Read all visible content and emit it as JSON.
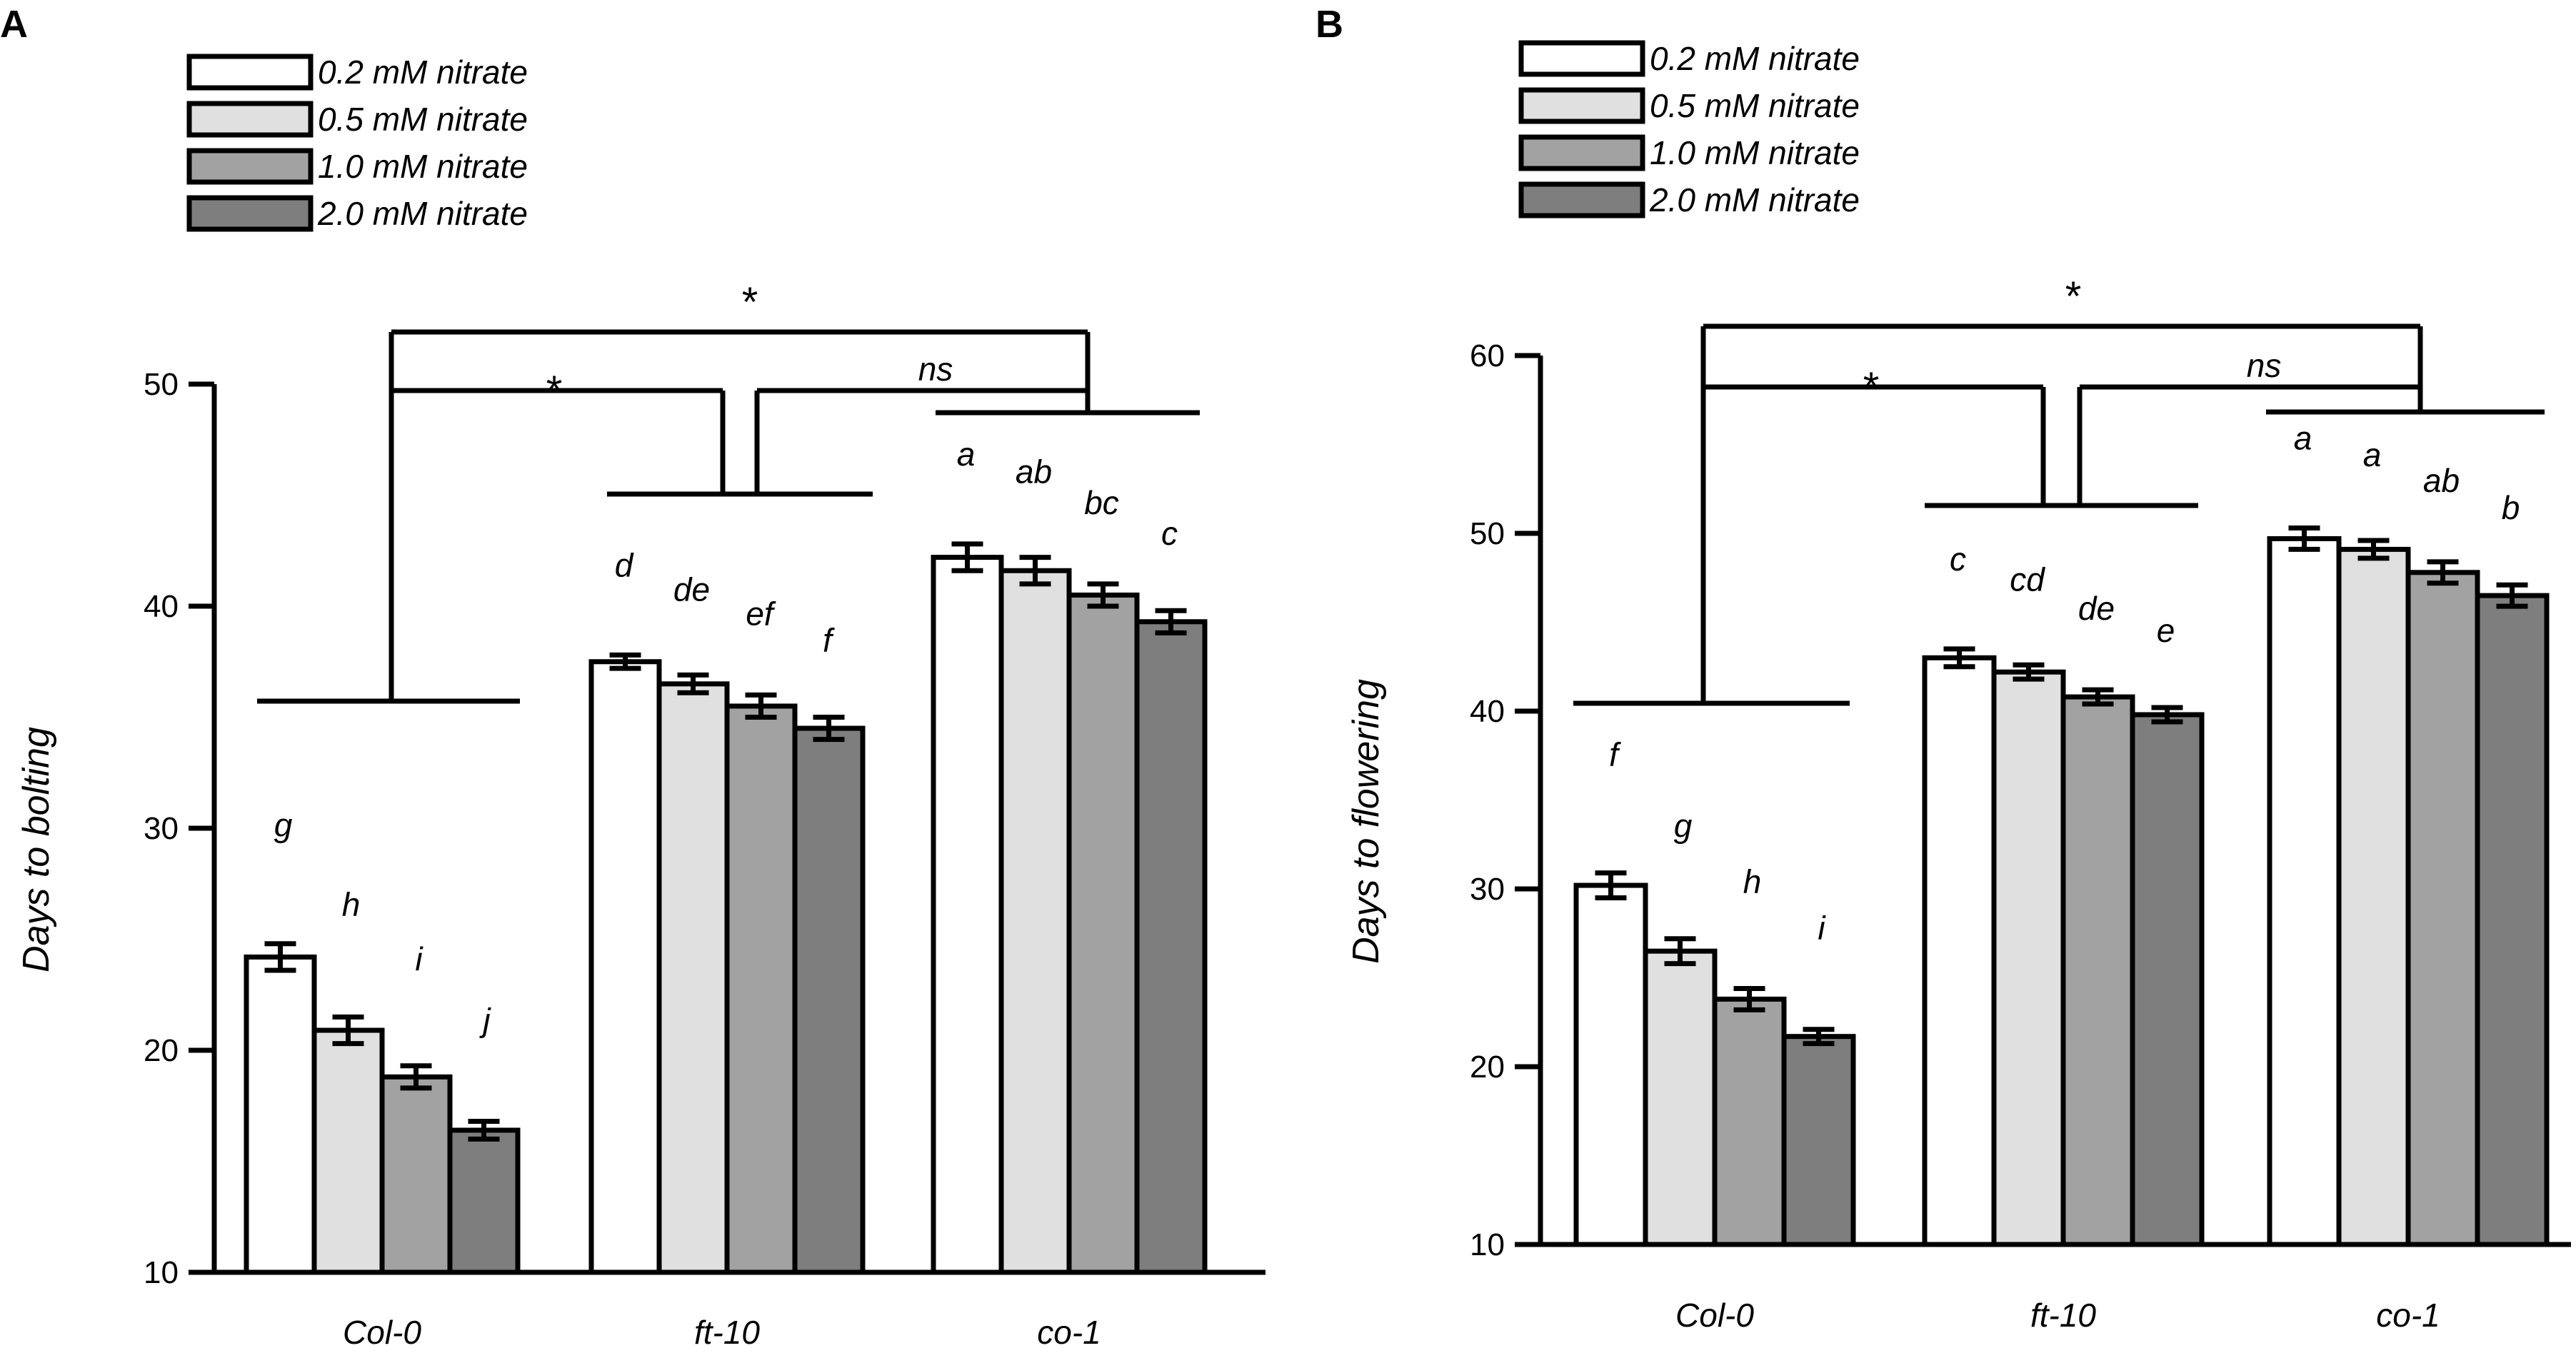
{
  "chart_data": [
    {
      "panel": "A",
      "type": "bar",
      "ylabel": "Days to bolting",
      "xlabel": "",
      "ylim": [
        10,
        50
      ],
      "yticks": [
        10,
        20,
        30,
        40,
        50
      ],
      "categories": [
        "Col-0",
        "ft-10",
        "co-1"
      ],
      "series": [
        {
          "name": "0.2 mM nitrate",
          "color": "#ffffff",
          "values": [
            24.2,
            37.5,
            42.2
          ],
          "errors": [
            0.6,
            0.3,
            0.6
          ],
          "letters": [
            "g",
            "d",
            "a"
          ]
        },
        {
          "name": "0.5 mM nitrate",
          "color": "#e0e0e0",
          "values": [
            20.9,
            36.5,
            41.6
          ],
          "errors": [
            0.6,
            0.4,
            0.6
          ],
          "letters": [
            "h",
            "de",
            "ab"
          ]
        },
        {
          "name": "1.0 mM nitrate",
          "color": "#a2a2a2",
          "values": [
            18.8,
            35.5,
            40.5
          ],
          "errors": [
            0.5,
            0.5,
            0.5
          ],
          "letters": [
            "i",
            "ef",
            "bc"
          ]
        },
        {
          "name": "2.0 mM nitrate",
          "color": "#7e7e7e",
          "values": [
            16.4,
            34.5,
            39.3
          ],
          "errors": [
            0.4,
            0.5,
            0.5
          ],
          "letters": [
            "j",
            "f",
            "c"
          ]
        }
      ],
      "brackets": {
        "outer": "*",
        "left": "*",
        "right": "ns"
      }
    },
    {
      "panel": "B",
      "type": "bar",
      "ylabel": "Days to flowering",
      "xlabel": "",
      "ylim": [
        10,
        60
      ],
      "yticks": [
        10,
        20,
        30,
        40,
        50,
        60
      ],
      "categories": [
        "Col-0",
        "ft-10",
        "co-1"
      ],
      "series": [
        {
          "name": "0.2 mM nitrate",
          "color": "#ffffff",
          "values": [
            30.2,
            43.0,
            49.7
          ],
          "errors": [
            0.7,
            0.5,
            0.6
          ],
          "letters": [
            "f",
            "c",
            "a"
          ]
        },
        {
          "name": "0.5 mM nitrate",
          "color": "#e0e0e0",
          "values": [
            26.5,
            42.2,
            49.1
          ],
          "errors": [
            0.7,
            0.4,
            0.5
          ],
          "letters": [
            "g",
            "cd",
            "a"
          ]
        },
        {
          "name": "1.0 mM nitrate",
          "color": "#a2a2a2",
          "values": [
            23.8,
            40.8,
            47.8
          ],
          "errors": [
            0.6,
            0.4,
            0.6
          ],
          "letters": [
            "h",
            "de",
            "ab"
          ]
        },
        {
          "name": "2.0 mM nitrate",
          "color": "#7e7e7e",
          "values": [
            21.7,
            39.8,
            46.5
          ],
          "errors": [
            0.4,
            0.4,
            0.6
          ],
          "letters": [
            "i",
            "e",
            "b"
          ]
        }
      ],
      "brackets": {
        "outer": "*",
        "left": "*",
        "right": "ns"
      }
    }
  ]
}
